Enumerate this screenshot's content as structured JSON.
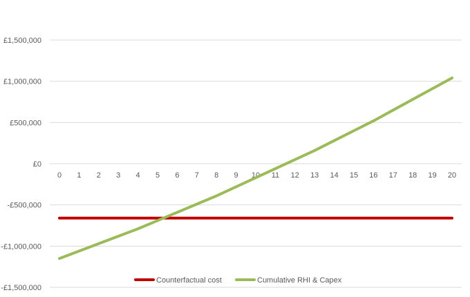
{
  "chart_data": {
    "type": "line",
    "title": "",
    "xlabel": "",
    "ylabel": "",
    "x": [
      0,
      1,
      2,
      3,
      4,
      5,
      6,
      7,
      8,
      9,
      10,
      11,
      12,
      13,
      14,
      15,
      16,
      17,
      18,
      19,
      20
    ],
    "ylim": [
      -1500000,
      1500000
    ],
    "y_ticks": [
      1500000,
      1000000,
      500000,
      0,
      -500000,
      -1000000,
      -1500000
    ],
    "y_tick_labels": [
      "£1,500,000",
      "£1,000,000",
      "£500,000",
      "£0",
      "-£500,000",
      "-£1,000,000",
      "-£1,500,000"
    ],
    "grid": true,
    "legend_position": "bottom",
    "series": [
      {
        "name": "Counterfactual cost",
        "color": "#c00000",
        "values": [
          -660000,
          -660000,
          -660000,
          -660000,
          -660000,
          -660000,
          -660000,
          -660000,
          -660000,
          -660000,
          -660000,
          -660000,
          -660000,
          -660000,
          -660000,
          -660000,
          -660000,
          -660000,
          -660000,
          -660000,
          -660000
        ]
      },
      {
        "name": "Cumulative RHI & Capex",
        "color": "#9bbb59",
        "values": [
          -1150000,
          -1060000,
          -970000,
          -880000,
          -790000,
          -690000,
          -590000,
          -490000,
          -390000,
          -280000,
          -170000,
          -60000,
          50000,
          160000,
          280000,
          400000,
          520000,
          650000,
          780000,
          910000,
          1040000
        ]
      }
    ]
  }
}
